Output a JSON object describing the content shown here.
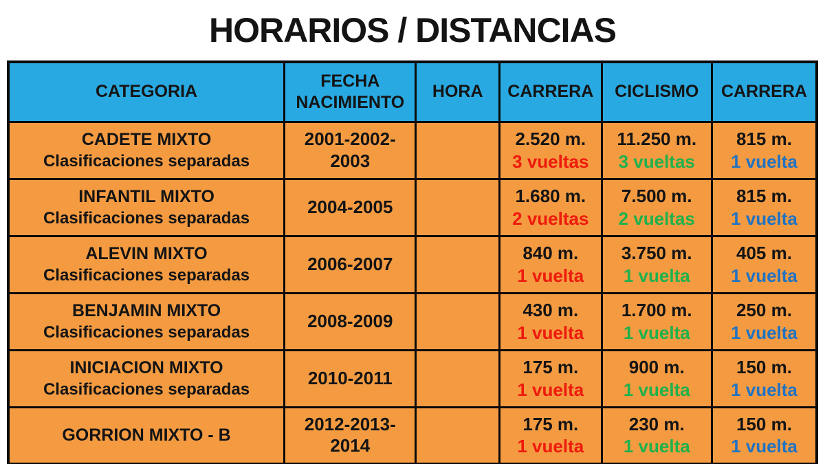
{
  "title": "HORARIOS / DISTANCIAS",
  "colors": {
    "cyan": "#29A9E1",
    "orange": "#F49B42",
    "red": "#EE1A0C",
    "green": "#1FB14C",
    "blue": "#2173C2",
    "ink": "#141414",
    "border": "#0a0a0a"
  },
  "table": {
    "headers": {
      "categoria": "CATEGORIA",
      "fecha": "FECHA\nNACIMIENTO",
      "hora": "HORA",
      "carrera1": "CARRERA",
      "ciclismo": "CICLISMO",
      "carrera2": "CARRERA"
    },
    "rows": [
      {
        "categoria": "CADETE MIXTO",
        "categoria_sub": "Clasificaciones separadas",
        "fecha": "2001-2002-\n2003",
        "hora": "",
        "carrera1": {
          "dist": "2.520 m.",
          "laps": "3 vueltas"
        },
        "ciclismo": {
          "dist": "11.250 m.",
          "laps": "3 vueltas"
        },
        "carrera2": {
          "dist": "815 m.",
          "laps": "1 vuelta"
        }
      },
      {
        "categoria": "INFANTIL MIXTO",
        "categoria_sub": "Clasificaciones separadas",
        "fecha": "2004-2005",
        "hora": "",
        "carrera1": {
          "dist": "1.680 m.",
          "laps": "2 vueltas"
        },
        "ciclismo": {
          "dist": "7.500 m.",
          "laps": "2 vueltas"
        },
        "carrera2": {
          "dist": "815 m.",
          "laps": "1 vuelta"
        }
      },
      {
        "categoria": "ALEVIN MIXTO",
        "categoria_sub": "Clasificaciones separadas",
        "fecha": "2006-2007",
        "hora": "",
        "carrera1": {
          "dist": "840 m.",
          "laps": "1 vuelta"
        },
        "ciclismo": {
          "dist": "3.750 m.",
          "laps": "1 vuelta"
        },
        "carrera2": {
          "dist": "405 m.",
          "laps": "1 vuelta"
        }
      },
      {
        "categoria": "BENJAMIN MIXTO",
        "categoria_sub": "Clasificaciones separadas",
        "fecha": "2008-2009",
        "hora": "",
        "carrera1": {
          "dist": "430 m.",
          "laps": "1 vuelta"
        },
        "ciclismo": {
          "dist": "1.700 m.",
          "laps": "1 vuelta"
        },
        "carrera2": {
          "dist": "250 m.",
          "laps": "1 vuelta"
        }
      },
      {
        "categoria": "INICIACION MIXTO",
        "categoria_sub": "Clasificaciones separadas",
        "fecha": "2010-2011",
        "hora": "",
        "carrera1": {
          "dist": "175 m.",
          "laps": "1 vuelta"
        },
        "ciclismo": {
          "dist": "900 m.",
          "laps": "1 vuelta"
        },
        "carrera2": {
          "dist": "150 m.",
          "laps": "1 vuelta"
        }
      },
      {
        "categoria": "GORRION MIXTO - B",
        "categoria_sub": "",
        "fecha": "2012-2013-\n2014",
        "hora": "",
        "carrera1": {
          "dist": "175 m.",
          "laps": "1 vuelta"
        },
        "ciclismo": {
          "dist": "230 m.",
          "laps": "1 vuelta"
        },
        "carrera2": {
          "dist": "150 m.",
          "laps": "1 vuelta"
        }
      }
    ]
  }
}
